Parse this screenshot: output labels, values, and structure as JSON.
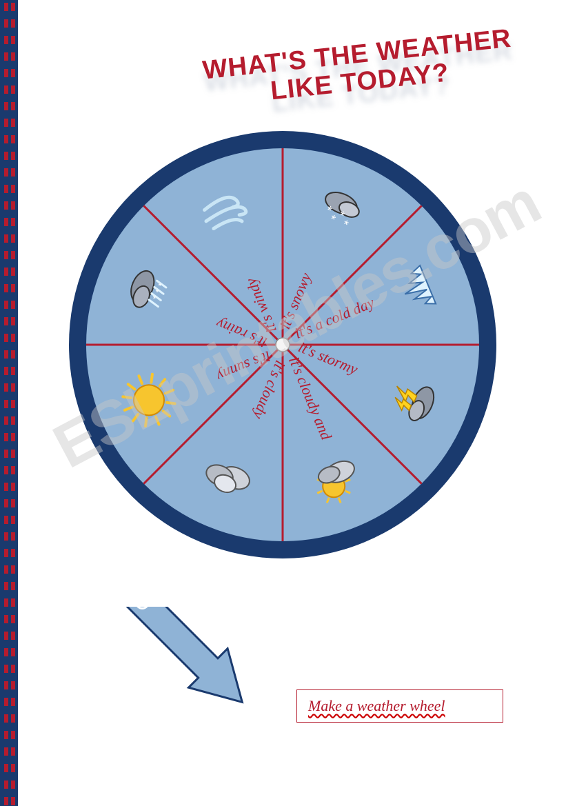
{
  "title": "WHAT'S THE WEATHER LIKE TODAY?",
  "instruction": "Make a weather wheel",
  "watermark": "ESLprintables.com",
  "wheel": {
    "rim_color": "#1a3a6e",
    "face_color": "#8fb3d6",
    "spoke_color": "#b51c2e",
    "hub_color": "#f5f5f5",
    "segments": [
      {
        "label": "it's snowy",
        "icon": "snowy",
        "angle_deg": 67.5
      },
      {
        "label": "it's a cold day",
        "icon": "icicles",
        "angle_deg": 22.5
      },
      {
        "label": "it's stormy",
        "icon": "stormy",
        "angle_deg": -22.5
      },
      {
        "label": "it's cloudy and sunny",
        "icon": "cloudy-sunny",
        "angle_deg": -67.5
      },
      {
        "label": "it's cloudy",
        "icon": "cloudy",
        "angle_deg": -112.5
      },
      {
        "label": "it's sunny",
        "icon": "sunny",
        "angle_deg": -157.5
      },
      {
        "label": "it's rainy",
        "icon": "rainy",
        "angle_deg": 157.5
      },
      {
        "label": "it's windy",
        "icon": "windy",
        "angle_deg": 112.5
      }
    ]
  },
  "border": {
    "blue": "#1a3a6e",
    "red": "#b51c2e",
    "dash_h": 12,
    "gap_h": 12
  },
  "arrow": {
    "fill": "#8fb3d6",
    "stroke": "#1a3a6e"
  }
}
